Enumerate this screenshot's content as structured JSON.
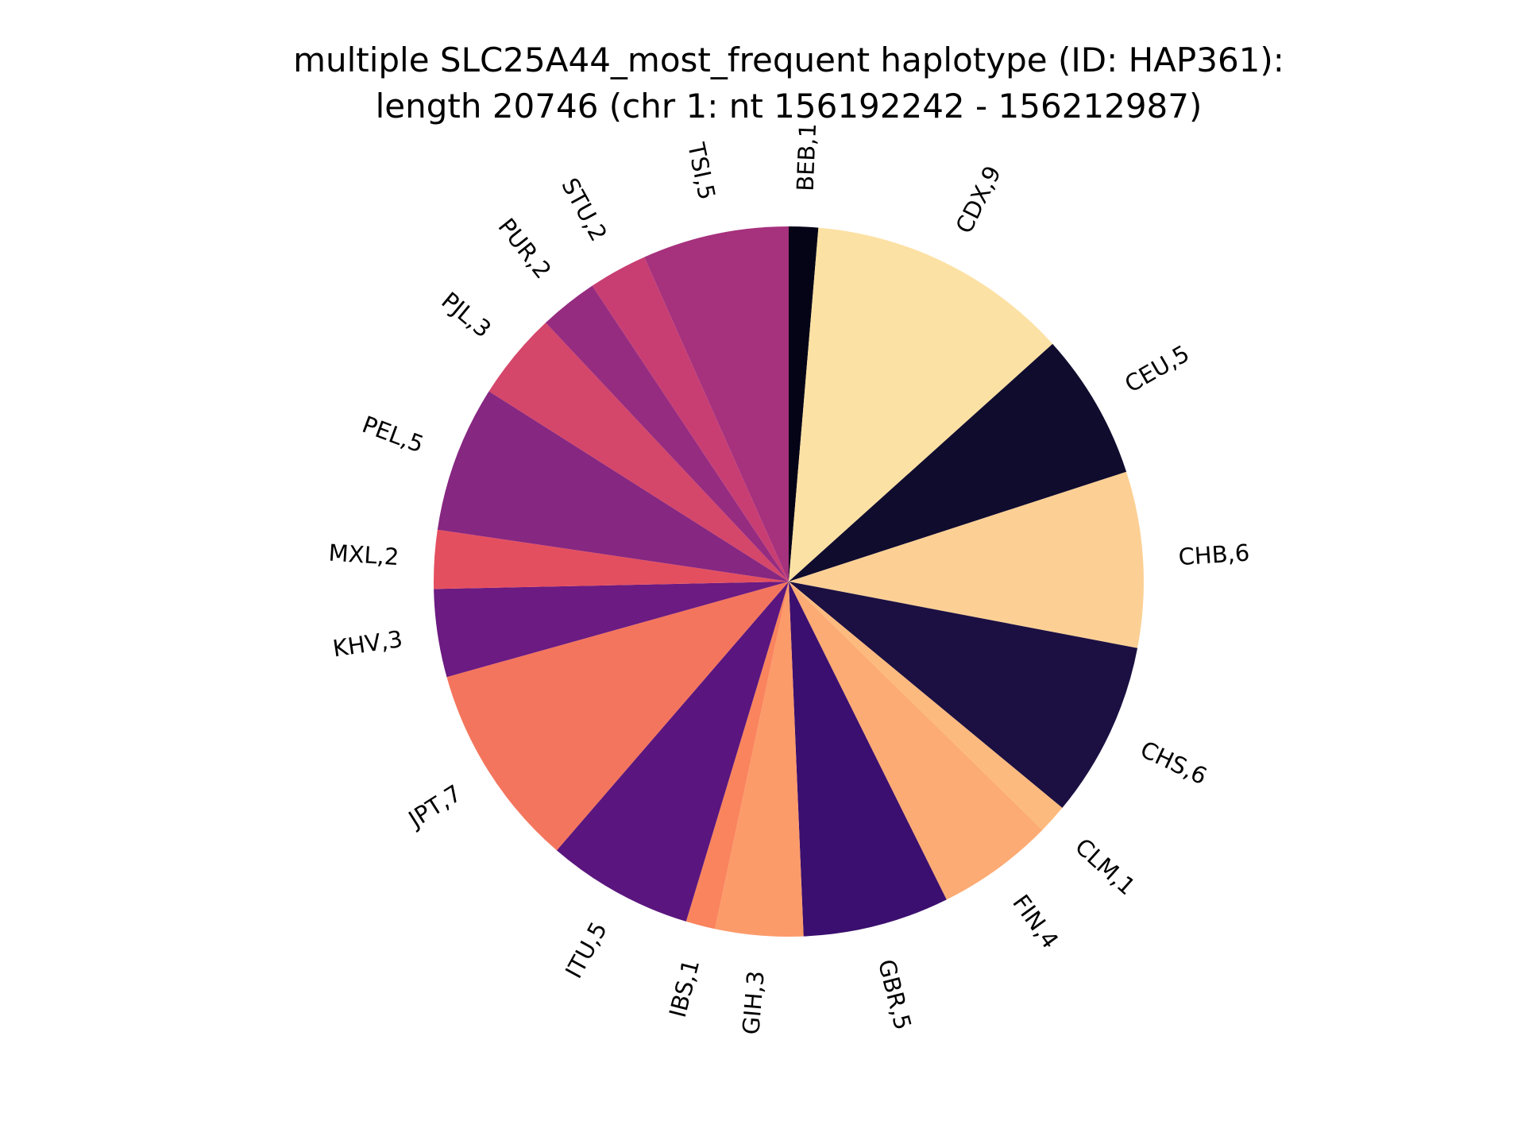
{
  "chart_data": {
    "type": "pie",
    "title_lines": [
      "multiple SLC25A44_most_frequent haplotype (ID: HAP361):",
      "length 20746 (chr 1: nt 156192242 - 156212987)"
    ],
    "slices": [
      {
        "label": "BEB,1",
        "category": "BEB",
        "value": 1,
        "color": "#050417"
      },
      {
        "label": "CDX,9",
        "category": "CDX",
        "value": 9,
        "color": "#fce1a4"
      },
      {
        "label": "CEU,5",
        "category": "CEU",
        "value": 5,
        "color": "#100c2e"
      },
      {
        "label": "CHB,6",
        "category": "CHB",
        "value": 6,
        "color": "#fcd095"
      },
      {
        "label": "CHS,6",
        "category": "CHS",
        "value": 6,
        "color": "#1c1042"
      },
      {
        "label": "CLM,1",
        "category": "CLM",
        "value": 1,
        "color": "#fdba7e"
      },
      {
        "label": "FIN,4",
        "category": "FIN",
        "value": 4,
        "color": "#fcab74"
      },
      {
        "label": "GBR,5",
        "category": "GBR",
        "value": 5,
        "color": "#3b0f6f"
      },
      {
        "label": "GIH,3",
        "category": "GIH",
        "value": 3,
        "color": "#fc9b6a"
      },
      {
        "label": "IBS,1",
        "category": "IBS",
        "value": 1,
        "color": "#f9845d"
      },
      {
        "label": "ITU,5",
        "category": "ITU",
        "value": 5,
        "color": "#5a167e"
      },
      {
        "label": "JPT,7",
        "category": "JPT",
        "value": 7,
        "color": "#f4755d"
      },
      {
        "label": "KHV,3",
        "category": "KHV",
        "value": 3,
        "color": "#6b1b81"
      },
      {
        "label": "MXL,2",
        "category": "MXL",
        "value": 2,
        "color": "#e44f5f"
      },
      {
        "label": "PEL,5",
        "category": "PEL",
        "value": 5,
        "color": "#862781"
      },
      {
        "label": "PJL,3",
        "category": "PJL",
        "value": 3,
        "color": "#d4466a"
      },
      {
        "label": "PUR,2",
        "category": "PUR",
        "value": 2,
        "color": "#962c80"
      },
      {
        "label": "STU,2",
        "category": "STU",
        "value": 2,
        "color": "#c83e73"
      },
      {
        "label": "TSI,5",
        "category": "TSI",
        "value": 5,
        "color": "#a6317d"
      }
    ],
    "start_angle_deg": 90,
    "direction": "clockwise",
    "label_style": "rotated-outside",
    "legend": "none"
  }
}
